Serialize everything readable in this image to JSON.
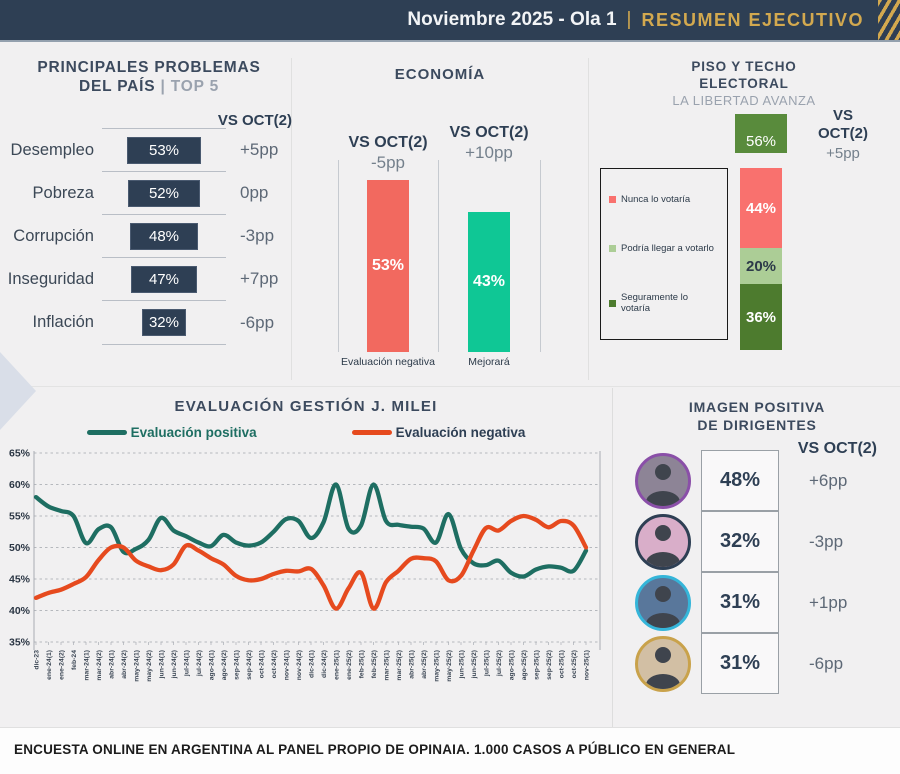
{
  "header": {
    "title": "Noviembre 2025 - Ola 1",
    "sep": "|",
    "subtitle": "RESUMEN EJECUTIVO",
    "bg_color": "#2e3f54",
    "accent_color": "#d3a94f"
  },
  "problems_panel": {
    "title_line1": "PRINCIPALES PROBLEMAS",
    "title_line2": "DEL PAÍS",
    "title_sep": "|",
    "title_suffix": "TOP 5",
    "vs_label": "VS OCT(2)",
    "items": [
      {
        "label": "Desempleo",
        "pct": 53,
        "change": "+5pp"
      },
      {
        "label": "Pobreza",
        "pct": 52,
        "change": "0pp"
      },
      {
        "label": "Corrupción",
        "pct": 48,
        "change": "-3pp"
      },
      {
        "label": "Inseguridad",
        "pct": 47,
        "change": "+7pp"
      },
      {
        "label": "Inflación",
        "pct": 32,
        "change": "-6pp"
      }
    ],
    "bar_color": "#2e3f54"
  },
  "economy_panel": {
    "title": "ECONOMÍA",
    "bars": [
      {
        "vs_label": "VS OCT(2)",
        "change": "-5pp",
        "pct": 53,
        "label": "Evaluación negativa",
        "color": "#f2695f"
      },
      {
        "vs_label": "VS OCT(2)",
        "change": "+10pp",
        "pct": 43,
        "label": "Mejorará",
        "color": "#0fc795"
      }
    ]
  },
  "electoral_panel": {
    "title_line1": "PISO Y TECHO",
    "title_line2": "ELECTORAL",
    "subtitle": "LA LIBERTAD AVANZA",
    "vs_line1": "VS",
    "vs_line2": "OCT(2)",
    "change": "+5pp",
    "ceiling": {
      "pct": 56,
      "color": "#598b3c"
    },
    "segments": [
      {
        "label": "Nunca lo votaría",
        "pct": 44,
        "color": "#f9716e",
        "text": "#ffffff"
      },
      {
        "label": "Podría llegar a votarlo",
        "pct": 20,
        "color": "#accd96",
        "text": "#2c3a49"
      },
      {
        "label": "Seguramente lo votaría",
        "pct": 36,
        "color": "#4d7b2e",
        "text": "#ffffff"
      }
    ]
  },
  "approval_panel": {
    "title": "EVALUACIÓN GESTIÓN J. MILEI"
  },
  "leaders_panel": {
    "title_line1": "IMAGEN POSITIVA",
    "title_line2": "DE DIRIGENTES",
    "vs_label": "VS OCT(2)",
    "rows": [
      {
        "pct": 48,
        "change": "+6pp",
        "ring": "#8a4fa8",
        "photo_bg": "#8d8496"
      },
      {
        "pct": 32,
        "change": "-3pp",
        "ring": "#2e3f54",
        "photo_bg": "#d9aec9"
      },
      {
        "pct": 31,
        "change": "+1pp",
        "ring": "#35b5d9",
        "photo_bg": "#59779b"
      },
      {
        "pct": 31,
        "change": "-6pp",
        "ring": "#c9a24b",
        "photo_bg": "#d2bfa4"
      }
    ]
  },
  "footer": {
    "text": "ENCUESTA ONLINE EN ARGENTINA AL PANEL PROPIO DE OPINAIA. 1.000 CASOS A PÚBLICO EN GENERAL"
  },
  "chart_data": [
    {
      "type": "bar",
      "orientation": "horizontal",
      "title": "PRINCIPALES PROBLEMAS DEL PAÍS | TOP 5",
      "categories": [
        "Desempleo",
        "Pobreza",
        "Corrupción",
        "Inseguridad",
        "Inflación"
      ],
      "values": [
        53,
        52,
        48,
        47,
        32
      ],
      "value_suffix": "%",
      "changes_vs_oct2": [
        "+5pp",
        "0pp",
        "-3pp",
        "+7pp",
        "-6pp"
      ]
    },
    {
      "type": "bar",
      "title": "ECONOMÍA",
      "categories": [
        "Evaluación negativa",
        "Mejorará"
      ],
      "values": [
        53,
        43
      ],
      "changes_vs_oct2": [
        "-5pp",
        "+10pp"
      ],
      "colors": [
        "#f2695f",
        "#0fc795"
      ]
    },
    {
      "type": "bar",
      "subtype": "stacked",
      "title": "PISO Y TECHO ELECTORAL — LA LIBERTAD AVANZA",
      "categories": [
        "Nunca lo votaría",
        "Podría llegar a votarlo",
        "Seguramente lo votaría"
      ],
      "values": [
        44,
        20,
        36
      ],
      "colors": [
        "#f9716e",
        "#accd96",
        "#4d7b2e"
      ],
      "ceiling_value": 56,
      "change_vs_oct2": "+5pp"
    },
    {
      "type": "line",
      "title": "EVALUACIÓN GESTIÓN J. MILEI",
      "x": [
        "dic-23",
        "ene-24(1)",
        "ene-24(2)",
        "feb-24",
        "mar-24(1)",
        "mar-24(2)",
        "abr-24(1)",
        "abr-24(2)",
        "may-24(1)",
        "may-24(2)",
        "jun-24(1)",
        "jun-24(2)",
        "jul-24(1)",
        "jul-24(2)",
        "ago-24(1)",
        "ago-24(2)",
        "sep-24(1)",
        "sep-24(2)",
        "oct-24(1)",
        "oct-24(2)",
        "nov-24(1)",
        "nov-24(2)",
        "dic-24(1)",
        "dic-24(2)",
        "ene-25(1)",
        "ene-25(2)",
        "feb-25(1)",
        "feb-25(2)",
        "mar-25(1)",
        "mar-25(2)",
        "abr-25(1)",
        "abr-25(2)",
        "may-25(1)",
        "may-25(2)",
        "jun-25(1)",
        "jun-25(2)",
        "jul-25(1)",
        "jul-25(2)",
        "ago-25(1)",
        "ago-25(2)",
        "sep-25(1)",
        "sep-25(2)",
        "oct-25(1)",
        "oct-25(2)",
        "nov-25(1)"
      ],
      "series": [
        {
          "name": "Evaluación positiva",
          "color": "#1e6e62",
          "values": [
            58,
            56.5,
            55.8,
            55,
            50.7,
            52.9,
            53.2,
            49.3,
            49.8,
            51.2,
            54.7,
            52.7,
            51.8,
            50.8,
            50.2,
            52,
            50.8,
            50.3,
            50.8,
            52.5,
            54.5,
            54.2,
            51.5,
            54,
            60,
            53,
            53.5,
            60,
            54.2,
            53.6,
            53.3,
            53,
            50.8,
            55.3,
            49.8,
            47.5,
            47.2,
            47.9,
            46,
            45.4,
            46.5,
            47,
            46.8,
            46.3,
            49.5
          ]
        },
        {
          "name": "Evaluación negativa",
          "color": "#e64a1e",
          "values": [
            42,
            42.8,
            43.3,
            44.2,
            45.3,
            48,
            50,
            50,
            47.9,
            47,
            46.4,
            47.3,
            50.3,
            49.5,
            48.3,
            47.3,
            45.5,
            44.8,
            45,
            45.8,
            46.3,
            46.2,
            46.6,
            44,
            40.3,
            43.5,
            46,
            40.3,
            44.5,
            46.3,
            48.2,
            48.3,
            47.8,
            44.8,
            45.5,
            49.5,
            53.1,
            52.7,
            54.2,
            55,
            54.4,
            53.2,
            54.2,
            53.5,
            50
          ]
        }
      ],
      "ylim": [
        35,
        65
      ],
      "yticks": [
        65,
        60,
        55,
        50,
        45,
        40,
        35
      ],
      "ytick_suffix": "%",
      "grid": true,
      "legend_position": "top"
    },
    {
      "type": "bar",
      "title": "IMAGEN POSITIVA DE DIRIGENTES",
      "values": [
        48,
        32,
        31,
        31
      ],
      "changes_vs_oct2": [
        "+6pp",
        "-3pp",
        "+1pp",
        "-6pp"
      ]
    }
  ]
}
